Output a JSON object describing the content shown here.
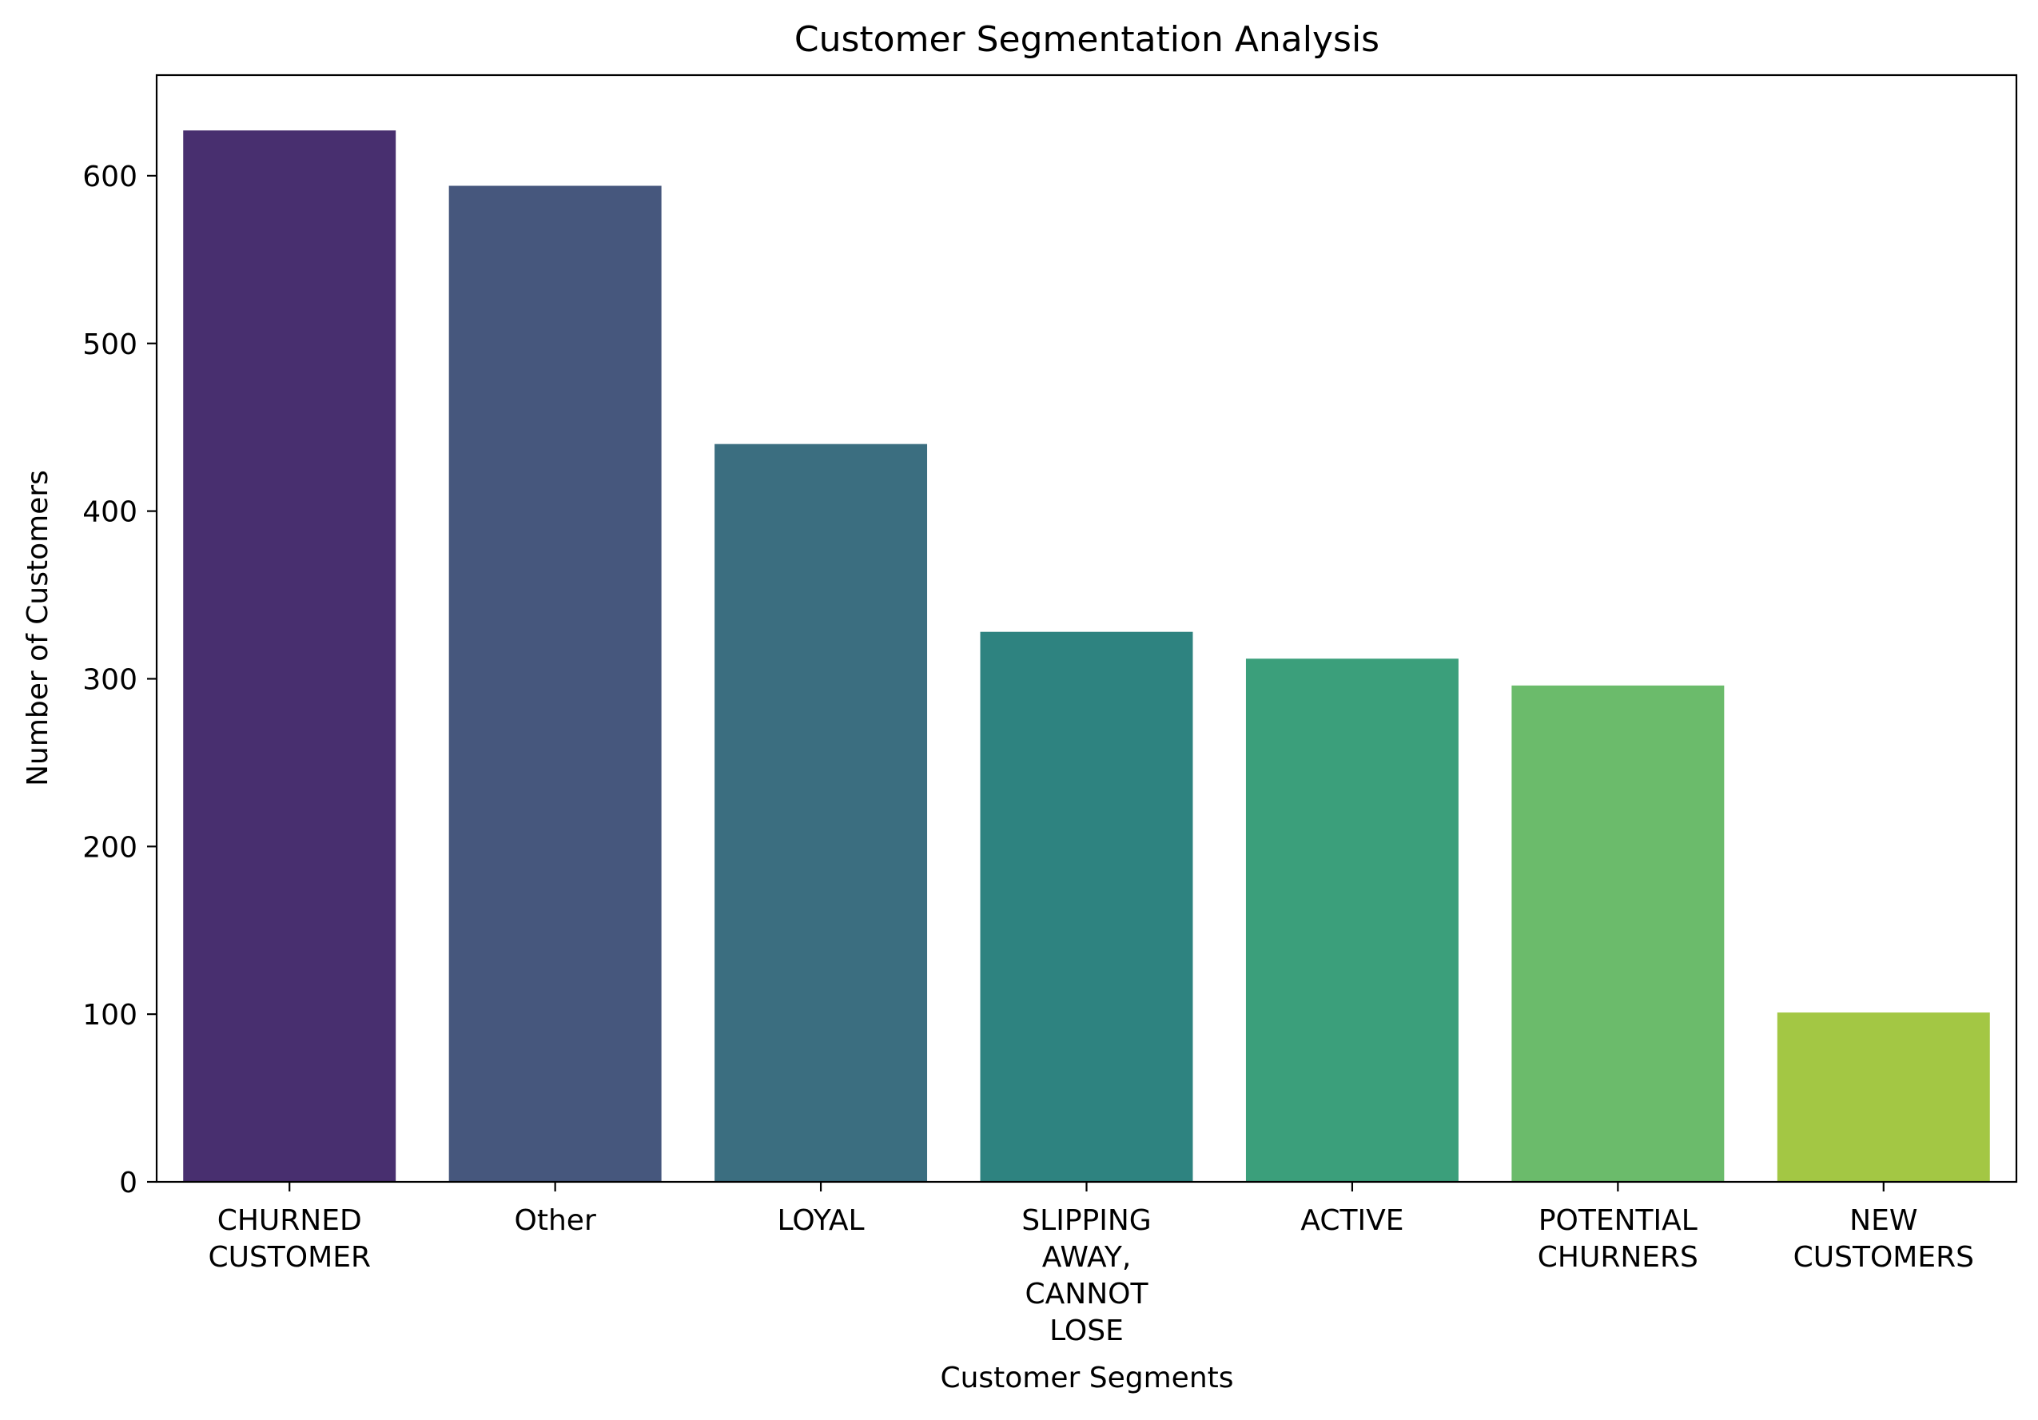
{
  "chart_data": {
    "type": "bar",
    "title": "Customer Segmentation Analysis",
    "xlabel": "Customer Segments",
    "ylabel": "Number of Customers",
    "categories": [
      [
        "CHURNED",
        "CUSTOMER"
      ],
      [
        "Other"
      ],
      [
        "LOYAL"
      ],
      [
        "SLIPPING",
        "AWAY,",
        "CANNOT",
        "LOSE"
      ],
      [
        "ACTIVE"
      ],
      [
        "POTENTIAL",
        "CHURNERS"
      ],
      [
        "NEW",
        "CUSTOMERS"
      ]
    ],
    "values": [
      627,
      594,
      440,
      328,
      312,
      296,
      101
    ],
    "colors": [
      "#482f6f",
      "#46577d",
      "#3b6e80",
      "#2e8380",
      "#3b9f7b",
      "#6bbb6b",
      "#a3c744"
    ],
    "ylim": [
      0,
      660
    ],
    "yticks": [
      0,
      100,
      200,
      300,
      400,
      500,
      600
    ],
    "grid": false,
    "legend": "none"
  }
}
